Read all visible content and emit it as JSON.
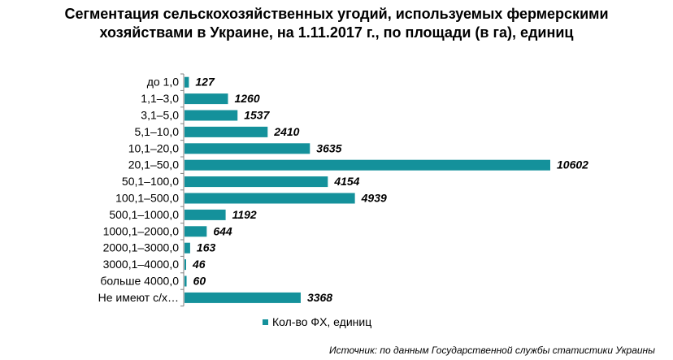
{
  "title": {
    "line1": "Сегментация сельскохозяйственных угодий, используемых фермерскими",
    "line2": "хозяйствами в Украине, на 1.11.2017 г., по площади (в га), единиц"
  },
  "source": "Источник: по данным Государственной службы статистики Украины",
  "colors": {
    "bar": "#14919B",
    "axis": "#808080"
  },
  "chart_data": {
    "type": "bar",
    "orientation": "horizontal",
    "categories": [
      "до 1,0",
      "1,1–3,0",
      "3,1–5,0",
      "5,1–10,0",
      "10,1–20,0",
      "20,1–50,0",
      "50,1–100,0",
      "100,1–500,0",
      "500,1–1000,0",
      "1000,1–2000,0",
      "2000,1–3000,0",
      "3000,1–4000,0",
      "больше 4000,0",
      "Не имеют с/х…"
    ],
    "series": [
      {
        "name": "Кол-во ФХ, единиц",
        "values": [
          127,
          1260,
          1537,
          2410,
          3635,
          10602,
          4154,
          4939,
          1192,
          644,
          163,
          46,
          60,
          3368
        ]
      }
    ],
    "data_labels": [
      "127",
      "1260",
      "1537",
      "2410",
      "3635",
      "10602",
      "4154",
      "4939",
      "1192",
      "644",
      "163",
      "46",
      "60",
      "3368"
    ],
    "xlim": [
      0,
      10602
    ],
    "grid": false,
    "legend_position": "bottom"
  }
}
